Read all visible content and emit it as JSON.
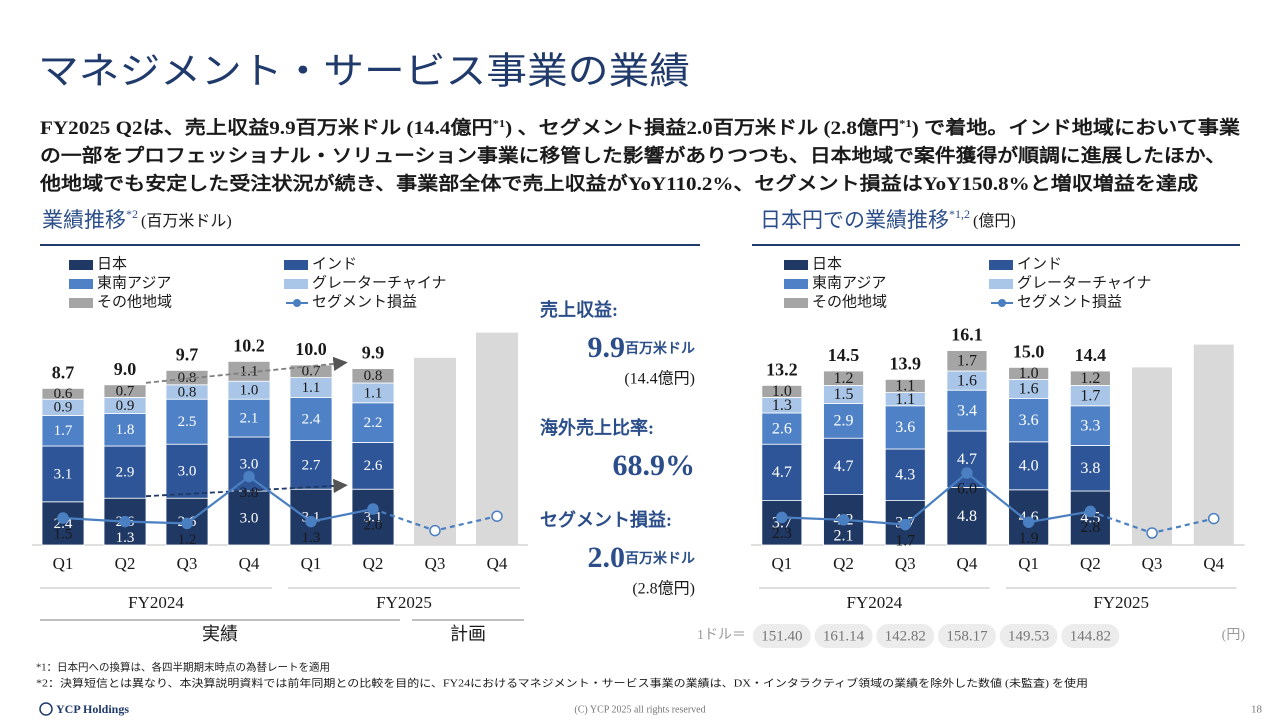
{
  "title": "マネジメント・サービス事業の業績",
  "summary": [
    [
      {
        "t": "FY2025 Q2は、売上収益9.9百万米ドル (14.4億円"
      },
      {
        "sup": "*1"
      },
      {
        "t": ") 、セグメント損益2.0百万米ドル (2.8億円"
      },
      {
        "sup": "*1"
      },
      {
        "t": ") で着地。インド地域において事業"
      }
    ],
    [
      {
        "t": "の一部をプロフェッショナル・ソリューション事業に移管した影響がありつつも、日本地域で案件獲得が順調に進展したほか、"
      }
    ],
    [
      {
        "t": "他地域でも安定した受注状況が続き、事業部全体で売上収益がYoY110.2%、セグメント損益はYoY150.8%と増収増益を達成"
      }
    ]
  ],
  "chart_data": [
    {
      "type": "bar",
      "stacked": true,
      "title": "業績推移",
      "title_sup": "*2",
      "unit": "(百万米ドル)",
      "categories": [
        "Q1",
        "Q2",
        "Q3",
        "Q4",
        "Q1",
        "Q2",
        "Q3",
        "Q4"
      ],
      "groups": [
        "FY2024",
        "FY2025"
      ],
      "ylim": [
        0,
        12
      ],
      "comparison_arrows": true,
      "series": [
        {
          "name": "日本",
          "color": "#1f3864",
          "values": [
            2.4,
            2.6,
            2.6,
            3.0,
            3.1,
            3.1,
            null,
            null
          ],
          "value_labels": [
            "2.4",
            "2.6",
            "2.6",
            "3.0",
            "3.1",
            "3.1",
            null,
            null
          ]
        },
        {
          "name": "インド",
          "color": "#2e5597",
          "values": [
            3.1,
            2.9,
            3.0,
            3.0,
            2.7,
            2.6,
            null,
            null
          ],
          "value_labels": [
            "3.1",
            "2.9",
            "3.0",
            "3.0",
            "2.7",
            "2.6",
            null,
            null
          ]
        },
        {
          "name": "東南アジア",
          "color": "#4f81c7",
          "values": [
            1.7,
            1.8,
            2.5,
            2.1,
            2.4,
            2.2,
            null,
            null
          ],
          "value_labels": [
            "1.7",
            "1.8",
            "2.5",
            "2.1",
            "2.4",
            "2.2",
            null,
            null
          ]
        },
        {
          "name": "グレーターチャイナ",
          "color": "#a9c6e8",
          "values": [
            0.9,
            0.9,
            0.8,
            1.0,
            1.1,
            1.1,
            null,
            null
          ],
          "value_labels": [
            "0.9",
            "0.9",
            "0.8",
            "1.0",
            "1.1",
            "1.1",
            null,
            null
          ]
        },
        {
          "name": "その他地域",
          "color": "#a5a5a5",
          "values": [
            0.6,
            0.7,
            0.8,
            1.1,
            0.7,
            0.8,
            null,
            null
          ],
          "value_labels": [
            "0.6",
            "0.7",
            "0.8",
            "1.1",
            "0.7",
            "0.8",
            null,
            null
          ]
        },
        {
          "name": "セグメント損益",
          "type": "line",
          "color": "#4a7fc1",
          "values": [
            1.5,
            1.3,
            1.2,
            3.8,
            1.3,
            2.0,
            0.8,
            1.6
          ],
          "value_labels": [
            "1.5",
            "1.3",
            "1.2",
            "3.8",
            "1.3",
            "2.0",
            null,
            null
          ]
        }
      ],
      "totals": [
        8.7,
        9.0,
        9.7,
        10.2,
        10.0,
        9.9
      ],
      "total_labels": [
        "8.7",
        "9.0",
        "9.7",
        "10.2",
        "10.0",
        "9.9"
      ],
      "plan_values": [
        null,
        null,
        null,
        null,
        null,
        null,
        10.4,
        11.8
      ],
      "plan_color": "#d9d9d9"
    },
    {
      "type": "bar",
      "stacked": true,
      "title": "日本円での業績推移",
      "title_sup": "*1,2",
      "unit": "(億円)",
      "categories": [
        "Q1",
        "Q2",
        "Q3",
        "Q4",
        "Q1",
        "Q2",
        "Q3",
        "Q4"
      ],
      "groups": [
        "FY2024",
        "FY2025"
      ],
      "ylim": [
        0,
        17
      ],
      "comparison_arrows": false,
      "series": [
        {
          "name": "日本",
          "color": "#1f3864",
          "values": [
            3.7,
            4.2,
            3.7,
            4.8,
            4.6,
            4.5,
            null,
            null
          ],
          "value_labels": [
            "3.7",
            "4.2",
            "3.7",
            "4.8",
            "4.6",
            "4.5",
            null,
            null
          ]
        },
        {
          "name": "インド",
          "color": "#2e5597",
          "values": [
            4.7,
            4.7,
            4.3,
            4.7,
            4.0,
            3.8,
            null,
            null
          ],
          "value_labels": [
            "4.7",
            "4.7",
            "4.3",
            "4.7",
            "4.0",
            "3.8",
            null,
            null
          ]
        },
        {
          "name": "東南アジア",
          "color": "#4f81c7",
          "values": [
            2.6,
            2.9,
            3.6,
            3.4,
            3.6,
            3.3,
            null,
            null
          ],
          "value_labels": [
            "2.6",
            "2.9",
            "3.6",
            "3.4",
            "3.6",
            "3.3",
            null,
            null
          ]
        },
        {
          "name": "グレーターチャイナ",
          "color": "#a9c6e8",
          "values": [
            1.3,
            1.5,
            1.1,
            1.6,
            1.6,
            1.7,
            null,
            null
          ],
          "value_labels": [
            "1.3",
            "1.5",
            "1.1",
            "1.6",
            "1.6",
            "1.7",
            null,
            null
          ]
        },
        {
          "name": "その他地域",
          "color": "#a5a5a5",
          "values": [
            1.0,
            1.2,
            1.1,
            1.7,
            1.0,
            1.2,
            null,
            null
          ],
          "value_labels": [
            "1.0",
            "1.2",
            "1.1",
            "1.7",
            "1.0",
            "1.2",
            null,
            null
          ]
        },
        {
          "name": "セグメント損益",
          "type": "line",
          "color": "#4a7fc1",
          "values": [
            2.3,
            2.1,
            1.7,
            6.0,
            1.9,
            2.8,
            1.0,
            2.2
          ],
          "value_labels": [
            "2.3",
            "2.1",
            "1.7",
            "6.0",
            "1.9",
            "2.8",
            null,
            null
          ]
        }
      ],
      "totals": [
        13.2,
        14.5,
        13.9,
        16.1,
        15.0,
        14.4
      ],
      "total_labels": [
        "13.2",
        "14.5",
        "13.9",
        "16.1",
        "15.0",
        "14.4"
      ],
      "plan_values": [
        null,
        null,
        null,
        null,
        null,
        null,
        14.8,
        16.7
      ],
      "plan_color": "#d9d9d9"
    }
  ],
  "phase_labels": [
    "実績",
    "計画"
  ],
  "highlights": [
    {
      "label": "売上収益:",
      "value": "9.9",
      "unit": "百万米ドル",
      "sub": "(14.4億円)"
    },
    {
      "label": "海外売上比率:",
      "value": "68.9%"
    },
    {
      "label": "セグメント損益:",
      "value": "2.0",
      "unit": "百万米ドル",
      "sub": "(2.8億円)"
    }
  ],
  "fx": {
    "label": "1ドル＝",
    "values": [
      151.4,
      161.14,
      142.82,
      158.17,
      149.53,
      144.82
    ],
    "value_labels": [
      "151.40",
      "161.14",
      "142.82",
      "158.17",
      "149.53",
      "144.82"
    ],
    "unit": "(円)"
  },
  "footnotes": [
    "*1：日本円への換算は、各四半期期末時点の為替レートを適用",
    "*2：決算短信とは異なり、本決算説明資料では前年同期との比較を目的に、FY24におけるマネジメント・サービス事業の業績は、DX・インタラクティブ領域の業績を除外した数値 (未監査) を使用"
  ],
  "footer": {
    "logo": "YCP Holdings",
    "copyright": "(C) YCP 2025 all rights reserved",
    "page": "18"
  }
}
